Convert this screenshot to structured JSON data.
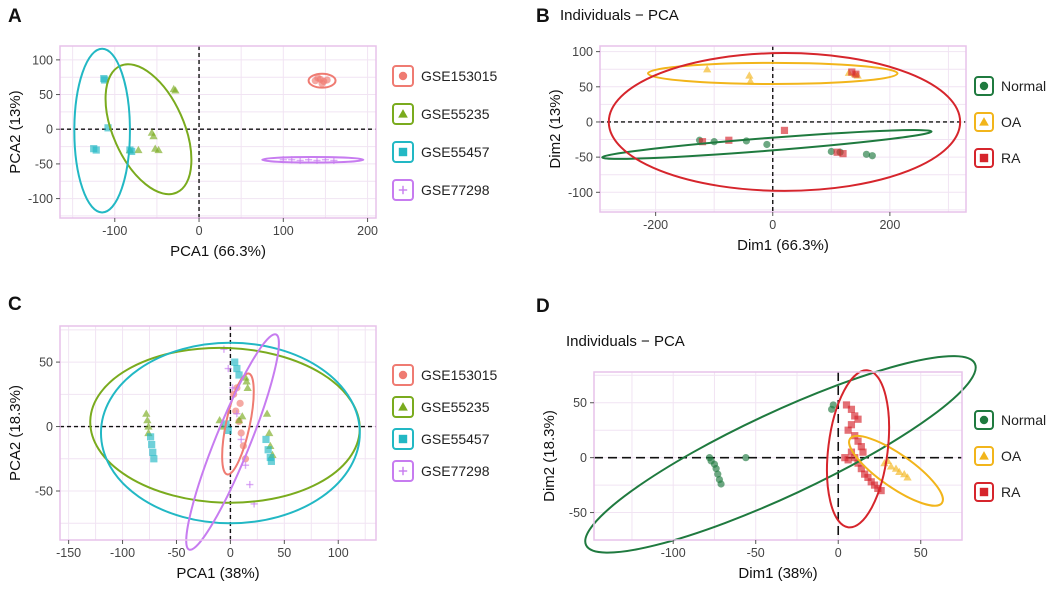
{
  "colors": {
    "red": "#ef7b72",
    "green": "#7aab1e",
    "cyan": "#22b8c4",
    "purple": "#c77cf0",
    "normal": "#1f7a3f",
    "oa": "#f2b51b",
    "ra": "#d6252c",
    "frame": "#e7c2ea",
    "grid": "#f1e4f3"
  },
  "chart_data": [
    {
      "panel": "A",
      "type": "scatter",
      "title": "",
      "xlabel": "PCA1 (66.3%)",
      "ylabel": "PCA2 (13%)",
      "xlim": [
        -165,
        210
      ],
      "ylim": [
        -128,
        120
      ],
      "xticks": [
        -100,
        0,
        100,
        200
      ],
      "yticks": [
        -100,
        -50,
        0,
        50,
        100
      ],
      "legend": [
        {
          "label": "GSE153015",
          "shape": "circle",
          "color": "red"
        },
        {
          "label": "GSE55235",
          "shape": "triangle",
          "color": "green"
        },
        {
          "label": "GSE55457",
          "shape": "square",
          "color": "cyan"
        },
        {
          "label": "GSE77298",
          "shape": "cross",
          "color": "purple"
        }
      ],
      "series": [
        {
          "name": "GSE153015",
          "color": "red",
          "shape": "circle",
          "points": [
            [
              138,
              70
            ],
            [
              144,
              72
            ],
            [
              148,
              69
            ],
            [
              152,
              71
            ],
            [
              146,
              66
            ],
            [
              141,
              74
            ]
          ]
        },
        {
          "name": "GSE55235",
          "color": "green",
          "shape": "triangle",
          "points": [
            [
              -30,
              58
            ],
            [
              -28,
              56
            ],
            [
              -56,
              -5
            ],
            [
              -54,
              -10
            ],
            [
              -52,
              -28
            ],
            [
              -72,
              -30
            ],
            [
              -82,
              -30
            ],
            [
              -48,
              -30
            ]
          ]
        },
        {
          "name": "GSE55457",
          "color": "cyan",
          "shape": "square",
          "points": [
            [
              -113,
              73
            ],
            [
              -112,
              71
            ],
            [
              -108,
              2
            ],
            [
              -125,
              -28
            ],
            [
              -122,
              -30
            ],
            [
              -82,
              -30
            ],
            [
              -80,
              -32
            ]
          ]
        },
        {
          "name": "GSE77298",
          "color": "purple",
          "shape": "cross",
          "points": [
            [
              100,
              -44
            ],
            [
              110,
              -44
            ],
            [
              120,
              -45
            ],
            [
              130,
              -44
            ],
            [
              140,
              -45
            ],
            [
              150,
              -44
            ],
            [
              160,
              -45
            ]
          ]
        }
      ],
      "ellipses": [
        {
          "color": "red",
          "cx": 146,
          "cy": 70,
          "rx": 16,
          "ry": 10,
          "angle": 0
        },
        {
          "color": "green",
          "cx": -60,
          "cy": 0,
          "rx": 42,
          "ry": 100,
          "angle": 24
        },
        {
          "color": "cyan",
          "cx": -115,
          "cy": -2,
          "rx": 33,
          "ry": 118,
          "angle": 0
        },
        {
          "color": "purple",
          "cx": 135,
          "cy": -44,
          "rx": 60,
          "ry": 4,
          "angle": 0
        }
      ]
    },
    {
      "panel": "B",
      "type": "scatter",
      "title": "Individuals − PCA",
      "xlabel": "Dim1 (66.3%)",
      "ylabel": "Dim2 (13%)",
      "xlim": [
        -295,
        330
      ],
      "ylim": [
        -128,
        108
      ],
      "xticks": [
        -200,
        0,
        200
      ],
      "yticks": [
        -100,
        -50,
        0,
        50,
        100
      ],
      "legend": [
        {
          "label": "Normal",
          "shape": "circle",
          "color": "normal"
        },
        {
          "label": "OA",
          "shape": "triangle",
          "color": "oa"
        },
        {
          "label": "RA",
          "shape": "square",
          "color": "ra"
        }
      ],
      "series": [
        {
          "name": "Normal",
          "color": "normal",
          "shape": "circle",
          "points": [
            [
              -125,
              -26
            ],
            [
              -100,
              -28
            ],
            [
              -45,
              -27
            ],
            [
              -10,
              -32
            ],
            [
              100,
              -42
            ],
            [
              115,
              -43
            ],
            [
              160,
              -46
            ],
            [
              170,
              -48
            ]
          ]
        },
        {
          "name": "OA",
          "color": "oa",
          "shape": "triangle",
          "points": [
            [
              -112,
              75
            ],
            [
              -40,
              66
            ],
            [
              -38,
              58
            ],
            [
              130,
              70
            ],
            [
              140,
              68
            ],
            [
              145,
              66
            ]
          ]
        },
        {
          "name": "RA",
          "color": "ra",
          "shape": "square",
          "points": [
            [
              -120,
              -28
            ],
            [
              -75,
              -26
            ],
            [
              20,
              -12
            ],
            [
              110,
              -43
            ],
            [
              120,
              -45
            ],
            [
              135,
              71
            ],
            [
              142,
              68
            ]
          ]
        }
      ],
      "ellipses": [
        {
          "color": "normal",
          "cx": -10,
          "cy": -32,
          "rx": 282,
          "ry": 9,
          "angle": 4.5
        },
        {
          "color": "oa",
          "cx": 0,
          "cy": 69,
          "rx": 213,
          "ry": 15,
          "angle": 0
        },
        {
          "color": "ra",
          "cx": 20,
          "cy": 0,
          "rx": 300,
          "ry": 98,
          "angle": 0
        }
      ]
    },
    {
      "panel": "C",
      "type": "scatter",
      "title": "",
      "xlabel": "PCA1 (38%)",
      "ylabel": "PCA2 (18.3%)",
      "xlim": [
        -158,
        135
      ],
      "ylim": [
        -88,
        78
      ],
      "xticks": [
        -150,
        -100,
        -50,
        0,
        50,
        100
      ],
      "yticks": [
        -50,
        0,
        50
      ],
      "legend": [
        {
          "label": "GSE153015",
          "shape": "circle",
          "color": "red"
        },
        {
          "label": "GSE55235",
          "shape": "triangle",
          "color": "green"
        },
        {
          "label": "GSE55457",
          "shape": "square",
          "color": "cyan"
        },
        {
          "label": "GSE77298",
          "shape": "cross",
          "color": "purple"
        }
      ],
      "series": [
        {
          "name": "GSE153015",
          "color": "red",
          "shape": "circle",
          "points": [
            [
              3,
              25
            ],
            [
              5,
              12
            ],
            [
              8,
              4
            ],
            [
              10,
              -5
            ],
            [
              12,
              -15
            ],
            [
              14,
              -25
            ],
            [
              6,
              30
            ],
            [
              9,
              18
            ]
          ]
        },
        {
          "name": "GSE55235",
          "color": "green",
          "shape": "triangle",
          "points": [
            [
              -78,
              10
            ],
            [
              -77,
              5
            ],
            [
              -76,
              0
            ],
            [
              -76,
              -5
            ],
            [
              -10,
              5
            ],
            [
              -8,
              0
            ],
            [
              8,
              5
            ],
            [
              11,
              8
            ],
            [
              14,
              38
            ],
            [
              15,
              35
            ],
            [
              16,
              30
            ],
            [
              34,
              10
            ],
            [
              36,
              -5
            ],
            [
              37,
              -15
            ],
            [
              39,
              -22
            ]
          ]
        },
        {
          "name": "GSE55457",
          "color": "cyan",
          "shape": "square",
          "points": [
            [
              -74,
              -8
            ],
            [
              -73,
              -14
            ],
            [
              -72,
              -20
            ],
            [
              -71,
              -25
            ],
            [
              4,
              50
            ],
            [
              6,
              45
            ],
            [
              8,
              40
            ],
            [
              -4,
              2
            ],
            [
              -2,
              -3
            ],
            [
              33,
              -10
            ],
            [
              35,
              -18
            ],
            [
              37,
              -24
            ],
            [
              38,
              -27
            ]
          ]
        },
        {
          "name": "GSE77298",
          "color": "purple",
          "shape": "cross",
          "points": [
            [
              -6,
              60
            ],
            [
              -2,
              45
            ],
            [
              2,
              30
            ],
            [
              6,
              10
            ],
            [
              10,
              -10
            ],
            [
              14,
              -30
            ],
            [
              18,
              -45
            ],
            [
              22,
              -60
            ]
          ]
        }
      ],
      "ellipses": [
        {
          "color": "red",
          "cx": 7,
          "cy": 2,
          "rx": 11,
          "ry": 40,
          "angle": -12
        },
        {
          "color": "green",
          "cx": -5,
          "cy": 1,
          "rx": 125,
          "ry": 60,
          "angle": -2
        },
        {
          "color": "cyan",
          "cx": 0,
          "cy": -5,
          "rx": 120,
          "ry": 70,
          "angle": 0
        },
        {
          "color": "purple",
          "cx": 2,
          "cy": -12,
          "rx": 16,
          "ry": 90,
          "angle": -22
        }
      ]
    },
    {
      "panel": "D",
      "type": "scatter",
      "title": "Individuals − PCA",
      "xlabel": "Dim1 (38%)",
      "ylabel": "Dim2 (18.3%)",
      "xlim": [
        -148,
        75
      ],
      "ylim": [
        -75,
        78
      ],
      "xticks": [
        -100,
        -50,
        0,
        50
      ],
      "yticks": [
        -50,
        0,
        50
      ],
      "legend": [
        {
          "label": "Normal",
          "shape": "circle",
          "color": "normal"
        },
        {
          "label": "OA",
          "shape": "triangle",
          "color": "oa"
        },
        {
          "label": "RA",
          "shape": "square",
          "color": "ra"
        }
      ],
      "series": [
        {
          "name": "Normal",
          "color": "normal",
          "shape": "circle",
          "points": [
            [
              -78,
              0
            ],
            [
              -77,
              -3
            ],
            [
              -75,
              -6
            ],
            [
              -74,
              -10
            ],
            [
              -73,
              -15
            ],
            [
              -72,
              -20
            ],
            [
              -71,
              -24
            ],
            [
              -56,
              0
            ],
            [
              -3,
              48
            ],
            [
              -4,
              44
            ]
          ]
        },
        {
          "name": "OA",
          "color": "oa",
          "shape": "triangle",
          "points": [
            [
              28,
              -5
            ],
            [
              32,
              -8
            ],
            [
              35,
              -10
            ],
            [
              37,
              -13
            ],
            [
              40,
              -15
            ],
            [
              42,
              -18
            ],
            [
              30,
              -3
            ]
          ]
        },
        {
          "name": "RA",
          "color": "ra",
          "shape": "square",
          "points": [
            [
              5,
              48
            ],
            [
              8,
              44
            ],
            [
              10,
              38
            ],
            [
              12,
              35
            ],
            [
              8,
              30
            ],
            [
              6,
              25
            ],
            [
              10,
              20
            ],
            [
              12,
              15
            ],
            [
              14,
              10
            ],
            [
              8,
              5
            ],
            [
              10,
              0
            ],
            [
              12,
              -5
            ],
            [
              14,
              -10
            ],
            [
              16,
              -15
            ],
            [
              18,
              -18
            ],
            [
              20,
              -22
            ],
            [
              22,
              -25
            ],
            [
              24,
              -28
            ],
            [
              26,
              -30
            ],
            [
              4,
              0
            ],
            [
              6,
              -2
            ],
            [
              15,
              5
            ]
          ]
        }
      ],
      "ellipses": [
        {
          "color": "normal",
          "cx": -35,
          "cy": 3,
          "rx": 130,
          "ry": 38,
          "angle": 25
        },
        {
          "color": "oa",
          "cx": 35,
          "cy": -12,
          "rx": 34,
          "ry": 15,
          "angle": -35
        },
        {
          "color": "ra",
          "cx": 12,
          "cy": 8,
          "rx": 18,
          "ry": 72,
          "angle": -7
        }
      ]
    }
  ]
}
